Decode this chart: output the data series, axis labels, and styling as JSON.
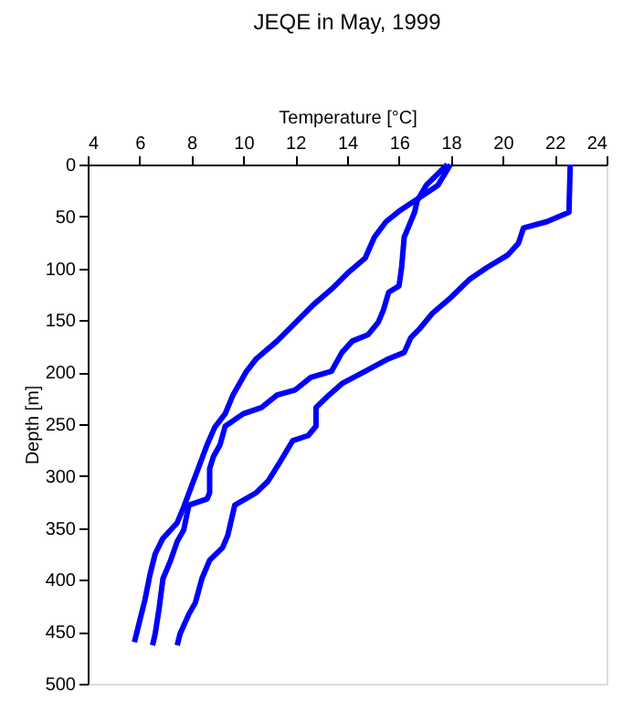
{
  "chart_data": {
    "type": "line",
    "title": "JEQE in May, 1999",
    "xlabel": "Temperature [°C]",
    "ylabel": "Depth [m]",
    "xlim": [
      4,
      24
    ],
    "xticks": [
      4,
      6,
      8,
      10,
      12,
      14,
      16,
      18,
      20,
      22,
      24
    ],
    "ylim": [
      500,
      0
    ],
    "yticks": [
      0,
      50,
      100,
      150,
      200,
      250,
      300,
      350,
      400,
      450,
      500
    ],
    "grid": false,
    "legend": false,
    "marker": "none",
    "line_style": "solid",
    "series": [
      {
        "color": "#0000ff",
        "x": [
          17.98,
          17.5,
          16.6,
          16.0,
          15.5,
          15.05,
          14.7,
          14.0,
          13.4,
          12.7,
          11.9,
          11.3,
          10.5,
          10.1,
          9.6,
          9.3,
          8.9,
          8.6,
          8.3,
          8.0,
          7.7,
          7.45,
          6.9,
          6.6,
          6.4,
          6.2,
          6.0,
          5.8
        ],
        "values": [
          0,
          20,
          35,
          45,
          55,
          70,
          90,
          105,
          120,
          135,
          155,
          170,
          187,
          200,
          222,
          240,
          253,
          270,
          290,
          310,
          330,
          345,
          360,
          375,
          395,
          420,
          440,
          460
        ]
      },
      {
        "color": "#0000ff",
        "x": [
          17.86,
          17.05,
          16.7,
          16.6,
          16.2,
          16.1,
          16.0,
          15.6,
          15.4,
          15.2,
          14.8,
          14.2,
          13.8,
          13.4,
          12.6,
          12.0,
          11.3,
          10.7,
          10.0,
          9.3,
          9.1,
          8.85,
          8.7,
          8.7,
          8.6,
          7.9,
          7.7,
          7.45,
          7.2,
          6.9,
          6.75,
          6.6,
          6.5
        ],
        "values": [
          0,
          20,
          35,
          46,
          70,
          99,
          117,
          123,
          140,
          152,
          164,
          170,
          181,
          199,
          205,
          217,
          222,
          234,
          240,
          252,
          270,
          281,
          293,
          316,
          322,
          328,
          352,
          363,
          381,
          399,
          428,
          452,
          463
        ]
      },
      {
        "color": "#0000ff",
        "x": [
          22.6,
          22.55,
          21.7,
          20.8,
          20.6,
          20.2,
          19.4,
          18.7,
          18.0,
          17.3,
          16.8,
          16.45,
          16.2,
          15.6,
          14.7,
          13.8,
          13.3,
          12.8,
          12.8,
          12.5,
          11.9,
          11.4,
          10.95,
          10.5,
          9.67,
          9.4,
          9.2,
          8.7,
          8.4,
          8.15,
          7.9,
          7.56,
          7.45
        ],
        "values": [
          0,
          46,
          55,
          61,
          76,
          87,
          99,
          111,
          128,
          143,
          158,
          167,
          181,
          187,
          199,
          211,
          222,
          234,
          252,
          261,
          266,
          287,
          305,
          316,
          328,
          357,
          369,
          381,
          399,
          422,
          433,
          452,
          463
        ]
      }
    ]
  }
}
